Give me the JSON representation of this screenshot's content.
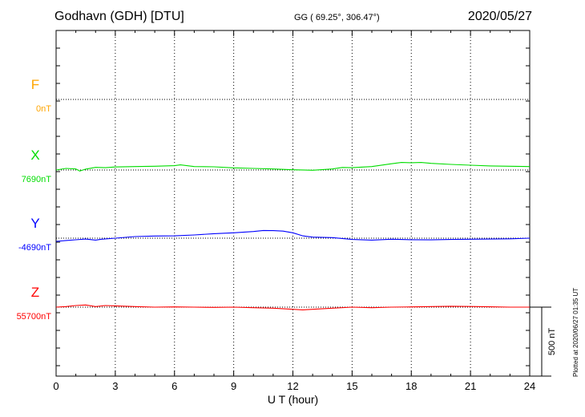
{
  "header": {
    "title": "Godhavn (GDH)  [DTU]",
    "coords": "GG ( 69.25°, 306.47°)",
    "date": "2020/05/27"
  },
  "footer": {
    "plotted": "Plotted at 2020/06/27 01:35 UT"
  },
  "chart_data": {
    "type": "line",
    "xlabel": "U T (hour)",
    "xlim": [
      0,
      24
    ],
    "xticks": [
      "0",
      "3",
      "6",
      "9",
      "12",
      "15",
      "18",
      "21",
      "24"
    ],
    "scale_bar": "500 nT",
    "series": [
      {
        "name": "F",
        "baseline_label": "0nT",
        "color": "#ffa500",
        "x": [],
        "y": []
      },
      {
        "name": "X",
        "baseline_label": "7690nT",
        "color": "#00dd00",
        "x": [
          0,
          0.5,
          1,
          1.2,
          1.5,
          2,
          2.5,
          3,
          4,
          5,
          6,
          6.3,
          7,
          8,
          9,
          10,
          11,
          12,
          13,
          14,
          14.5,
          15,
          16,
          17,
          17.5,
          18,
          18.5,
          19,
          20,
          21,
          22,
          23,
          24
        ],
        "y": [
          7690,
          7705,
          7700,
          7680,
          7698,
          7715,
          7712,
          7718,
          7722,
          7725,
          7730,
          7738,
          7722,
          7720,
          7710,
          7705,
          7700,
          7692,
          7688,
          7700,
          7714,
          7712,
          7722,
          7748,
          7760,
          7758,
          7760,
          7752,
          7742,
          7735,
          7728,
          7725,
          7722
        ]
      },
      {
        "name": "Y",
        "baseline_label": "-4690nT",
        "color": "#0000ff",
        "x": [
          0,
          0.5,
          1,
          1.5,
          2,
          2.3,
          3,
          4,
          5,
          6,
          7,
          8,
          9,
          10,
          10.5,
          11,
          11.5,
          12,
          12.5,
          13,
          14,
          15,
          16,
          17,
          18,
          19,
          20,
          21,
          22,
          23,
          24
        ],
        "y": [
          -4720,
          -4712,
          -4705,
          -4698,
          -4708,
          -4700,
          -4690,
          -4675,
          -4670,
          -4668,
          -4660,
          -4648,
          -4640,
          -4628,
          -4618,
          -4620,
          -4624,
          -4640,
          -4668,
          -4680,
          -4685,
          -4702,
          -4708,
          -4700,
          -4704,
          -4706,
          -4702,
          -4700,
          -4698,
          -4696,
          -4690
        ]
      },
      {
        "name": "Z",
        "baseline_label": "55700nT",
        "color": "#ff0000",
        "x": [
          0,
          0.5,
          1,
          1.5,
          2,
          2.5,
          3,
          4,
          5,
          6,
          7,
          8,
          9,
          10,
          11,
          12,
          12.5,
          13,
          14,
          15,
          16,
          17,
          18,
          19,
          20,
          21,
          22,
          23,
          24
        ],
        "y": [
          55700,
          55705,
          55715,
          55720,
          55705,
          55715,
          55712,
          55705,
          55700,
          55702,
          55700,
          55698,
          55700,
          55695,
          55690,
          55680,
          55675,
          55680,
          55690,
          55700,
          55695,
          55700,
          55702,
          55705,
          55708,
          55706,
          55703,
          55700,
          55700
        ]
      }
    ]
  }
}
